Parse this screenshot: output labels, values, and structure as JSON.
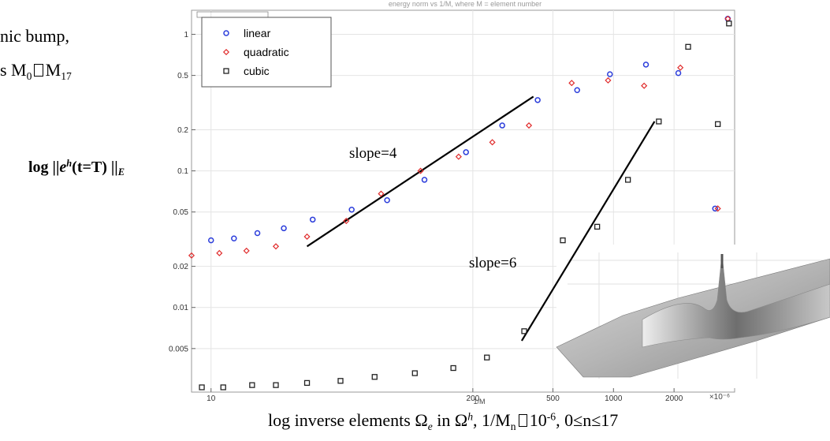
{
  "left_text": {
    "line1": "nic bump,",
    "line2_prefix": "s M",
    "line2_sub0": "0",
    "line2_mid": "M",
    "line2_sub17": "17"
  },
  "ylabel": {
    "prefix": "log ||",
    "e": "e",
    "h": "h",
    "mid": "(t=T) ||",
    "E": "E"
  },
  "xlabel": {
    "prefix": "log inverse elements Ω",
    "sub_e": "e",
    "mid1": " in Ω",
    "sup_h": "h",
    "mid2": ", 1/M",
    "sub_n": "n",
    "mid3": "10",
    "sup_exp": "-6",
    "suffix": ", 0≤n≤17"
  },
  "annotations": {
    "slope4": "slope=4",
    "slope6": "slope=6"
  },
  "chart_data": {
    "type": "scatter",
    "title": "energy norm vs 1/M, where M = element number",
    "xlabel": "1/M",
    "x_scale": "log",
    "y_scale": "log",
    "x_corner_label": "×10⁻⁶",
    "xlim": [
      8,
      4000
    ],
    "ylim": [
      0.0024,
      1.5
    ],
    "x_ticks": [
      {
        "value": 10,
        "label": "10"
      },
      {
        "value": 200,
        "label": "200"
      },
      {
        "value": 500,
        "label": "500"
      },
      {
        "value": 1000,
        "label": "1000"
      },
      {
        "value": 2000,
        "label": "2000"
      }
    ],
    "y_ticks": [
      {
        "value": 1,
        "label": "1"
      },
      {
        "value": 0.5,
        "label": "0.5"
      },
      {
        "value": 0.2,
        "label": "0.2"
      },
      {
        "value": 0.1,
        "label": "0.1"
      },
      {
        "value": 0.05,
        "label": "0.05"
      },
      {
        "value": 0.02,
        "label": "0.02"
      },
      {
        "value": 0.01,
        "label": "0.01"
      },
      {
        "value": 0.005,
        "label": "0.005"
      }
    ],
    "grid": true,
    "legend_position": "top-left",
    "series": [
      {
        "name": "linear",
        "marker": "circle",
        "color": "#2b3ddb",
        "points": [
          [
            10,
            0.031
          ],
          [
            13,
            0.032
          ],
          [
            17,
            0.035
          ],
          [
            23,
            0.038
          ],
          [
            32,
            0.044
          ],
          [
            50,
            0.052
          ],
          [
            75,
            0.061
          ],
          [
            115,
            0.086
          ],
          [
            185,
            0.137
          ],
          [
            280,
            0.215
          ],
          [
            420,
            0.33
          ],
          [
            660,
            0.39
          ],
          [
            960,
            0.51
          ],
          [
            1450,
            0.6
          ],
          [
            2100,
            0.52
          ],
          [
            3200,
            0.053
          ],
          [
            3700,
            1.3
          ]
        ]
      },
      {
        "name": "quadratic",
        "marker": "diamond",
        "color": "#e02a2a",
        "points": [
          [
            8,
            0.024
          ],
          [
            11,
            0.025
          ],
          [
            15,
            0.026
          ],
          [
            21,
            0.028
          ],
          [
            30,
            0.033
          ],
          [
            47,
            0.043
          ],
          [
            70,
            0.068
          ],
          [
            110,
            0.1
          ],
          [
            170,
            0.127
          ],
          [
            250,
            0.162
          ],
          [
            380,
            0.215
          ],
          [
            620,
            0.44
          ],
          [
            940,
            0.46
          ],
          [
            1420,
            0.42
          ],
          [
            2150,
            0.57
          ],
          [
            3300,
            0.053
          ],
          [
            3700,
            1.3
          ]
        ]
      },
      {
        "name": "cubic",
        "marker": "square",
        "color": "#222222",
        "points": [
          [
            9,
            0.0026
          ],
          [
            11.5,
            0.0026
          ],
          [
            16,
            0.0027
          ],
          [
            21,
            0.0027
          ],
          [
            30,
            0.0028
          ],
          [
            44,
            0.0029
          ],
          [
            65,
            0.0031
          ],
          [
            103,
            0.0033
          ],
          [
            160,
            0.0036
          ],
          [
            235,
            0.0043
          ],
          [
            360,
            0.0067
          ],
          [
            560,
            0.031
          ],
          [
            830,
            0.039
          ],
          [
            1180,
            0.086
          ],
          [
            1680,
            0.23
          ],
          [
            2350,
            0.81
          ],
          [
            3300,
            0.22
          ],
          [
            3750,
            1.2
          ]
        ]
      }
    ],
    "slope_lines": [
      {
        "label": "slope=4",
        "from": [
          30,
          0.028
        ],
        "to": [
          400,
          0.35
        ]
      },
      {
        "label": "slope=6",
        "from": [
          350,
          0.0057
        ],
        "to": [
          1600,
          0.23
        ]
      }
    ]
  }
}
